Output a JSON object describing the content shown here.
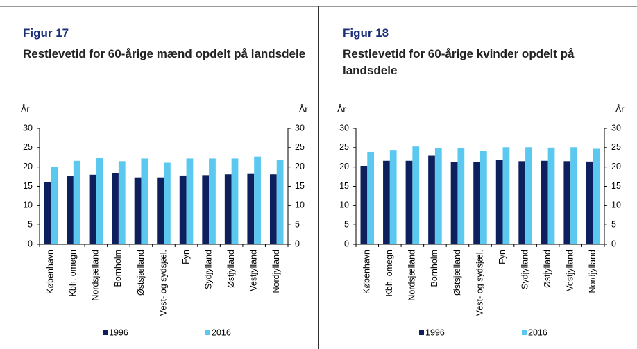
{
  "chart_data": [
    {
      "type": "bar",
      "figure": "Figur 17",
      "title": "Restlevetid for 60-årige mænd opdelt på landsdele",
      "y_label": "År",
      "y2_label": "År",
      "categories": [
        "København",
        "Kbh. omegn",
        "Nordsjælland",
        "Bornholm",
        "Østsjælland",
        "Vest- og sydsjæl.",
        "Fyn",
        "Sydjylland",
        "Østjylland",
        "Vestjylland",
        "Nordjylland"
      ],
      "series": [
        {
          "name": "1996",
          "color": "#0d1f5c",
          "values": [
            16.0,
            17.6,
            18.0,
            18.4,
            17.3,
            17.3,
            17.8,
            17.9,
            18.1,
            18.2,
            18.1
          ]
        },
        {
          "name": "2016",
          "color": "#5bc8ef",
          "values": [
            20.1,
            21.6,
            22.3,
            21.5,
            22.2,
            21.1,
            22.2,
            22.2,
            22.2,
            22.7,
            21.9
          ]
        }
      ],
      "ylim": [
        0,
        30
      ],
      "yticks": [
        0,
        5,
        10,
        15,
        20,
        25,
        30
      ],
      "y2lim": [
        0,
        30
      ],
      "y2ticks": [
        0,
        5,
        10,
        15,
        20,
        25,
        30
      ]
    },
    {
      "type": "bar",
      "figure": "Figur 18",
      "title": "Restlevetid for 60-årige kvinder opdelt på landsdele",
      "y_label": "År",
      "y2_label": "År",
      "categories": [
        "København",
        "Kbh. omegn",
        "Nordsjælland",
        "Bornholm",
        "Østsjælland",
        "Vest- og sydsjæl.",
        "Fyn",
        "Sydjylland",
        "Østjylland",
        "Vestjylland",
        "Nordjylland"
      ],
      "series": [
        {
          "name": "1996",
          "color": "#0d1f5c",
          "values": [
            20.3,
            21.6,
            21.6,
            22.9,
            21.3,
            21.2,
            21.8,
            21.5,
            21.6,
            21.5,
            21.4
          ]
        },
        {
          "name": "2016",
          "color": "#5bc8ef",
          "values": [
            23.9,
            24.4,
            25.3,
            24.9,
            24.8,
            24.1,
            25.1,
            25.1,
            25.0,
            25.1,
            24.7
          ]
        }
      ],
      "ylim": [
        0,
        30
      ],
      "yticks": [
        0,
        5,
        10,
        15,
        20,
        25,
        30
      ],
      "y2lim": [
        0,
        30
      ],
      "y2ticks": [
        0,
        5,
        10,
        15,
        20,
        25,
        30
      ]
    }
  ]
}
